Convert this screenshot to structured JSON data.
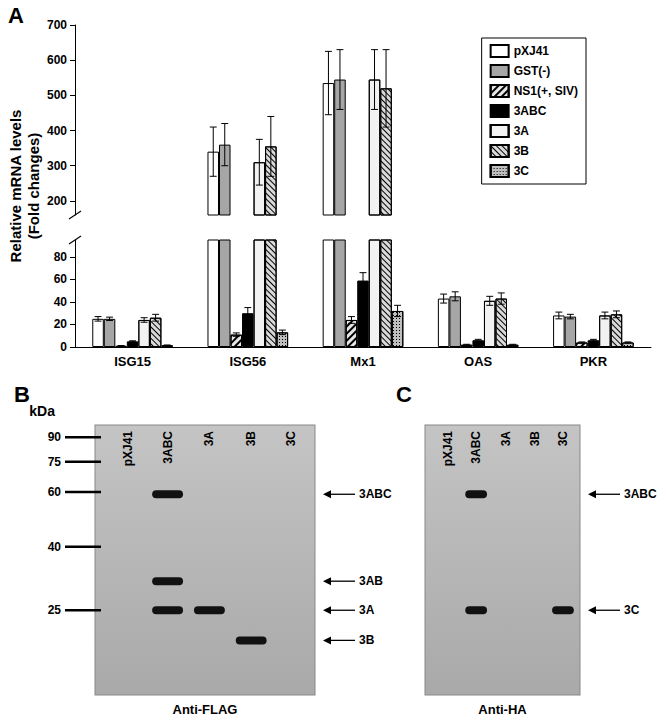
{
  "chart_data": {
    "type": "bar",
    "panel_label": "A",
    "y_label": "Relative mRNA levels\n(Fold changes)",
    "categories": [
      "ISG15",
      "ISG56",
      "Mx1",
      "OAS",
      "PKR"
    ],
    "ylim": [
      0,
      700
    ],
    "y_break": [
      95,
      160
    ],
    "yticks": [
      0,
      20,
      40,
      60,
      80,
      200,
      300,
      400,
      500,
      600,
      700
    ],
    "grid": false,
    "legend": "top-right",
    "series": [
      {
        "name": "pXJ41",
        "color": "#ffffff",
        "values": [
          25,
          340,
          535,
          43,
          28
        ],
        "errors": [
          2,
          70,
          90,
          4,
          3
        ]
      },
      {
        "name": "GST(-)",
        "color": "#a6a6a6",
        "values": [
          25,
          360,
          545,
          45,
          27
        ],
        "errors": [
          1.5,
          60,
          85,
          4,
          2
        ]
      },
      {
        "name": "NS1(+, SIV)",
        "color": "#e6e6e6",
        "values": [
          1,
          11,
          24,
          2,
          4
        ],
        "errors": [
          0.3,
          1.5,
          3,
          0.4,
          0.5
        ]
      },
      {
        "name": "3ABC",
        "color": "#000000",
        "values": [
          5,
          30,
          59,
          6,
          6
        ],
        "errors": [
          0.5,
          5,
          7,
          0.8,
          0.8
        ]
      },
      {
        "name": "3A",
        "color": "#f2f2f2",
        "values": [
          24,
          310,
          545,
          41,
          28
        ],
        "errors": [
          2,
          65,
          85,
          4,
          3
        ]
      },
      {
        "name": "3B",
        "color": "#d9d9d9",
        "values": [
          26,
          355,
          520,
          43,
          29
        ],
        "errors": [
          3,
          85,
          110,
          5,
          3
        ]
      },
      {
        "name": "3C",
        "color": "#bfbfbf",
        "values": [
          1.5,
          13,
          32,
          2,
          4
        ],
        "errors": [
          0.3,
          2,
          5,
          0.4,
          0.5
        ]
      }
    ]
  },
  "blots": [
    {
      "panel_label": "B",
      "antibody": "Anti-FLAG",
      "lanes": [
        "pXJ41",
        "3ABC",
        "3A",
        "3B",
        "3C"
      ],
      "marker_unit": "kDa",
      "markers": [
        90,
        75,
        60,
        40,
        25
      ],
      "bands": [
        {
          "lane": "3ABC",
          "kda": 59,
          "label": "3ABC"
        },
        {
          "lane": "3ABC",
          "kda": 31,
          "label": "3AB"
        },
        {
          "lane": "3ABC",
          "kda": 25,
          "label": "3A"
        },
        {
          "lane": "3A",
          "kda": 25
        },
        {
          "lane": "3B",
          "kda": 20,
          "label": "3B"
        }
      ]
    },
    {
      "panel_label": "C",
      "antibody": "Anti-HA",
      "lanes": [
        "pXJ41",
        "3ABC",
        "3A",
        "3B",
        "3C"
      ],
      "bands": [
        {
          "lane": "3ABC",
          "kda": 59,
          "label": "3ABC"
        },
        {
          "lane": "3ABC",
          "kda": 25,
          "label": "3C"
        },
        {
          "lane": "3C",
          "kda": 25
        }
      ]
    }
  ]
}
